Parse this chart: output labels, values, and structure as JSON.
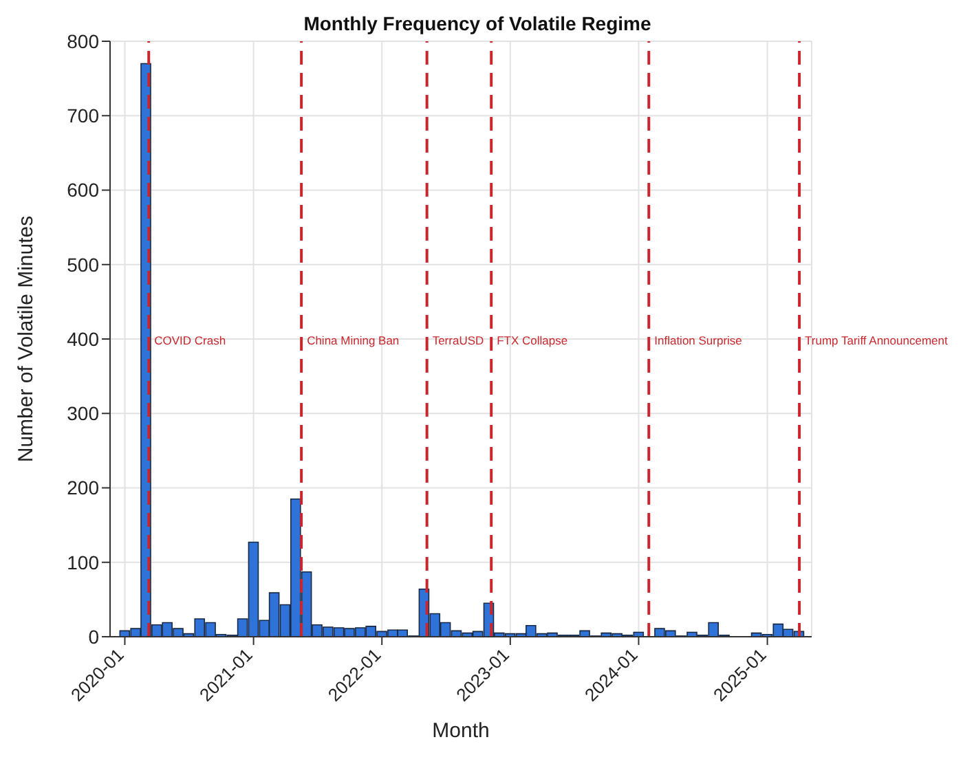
{
  "chart_data": {
    "type": "bar",
    "title": "Monthly Frequency of Volatile Regime",
    "xlabel": "Month",
    "ylabel": "Number of Volatile Minutes",
    "x": [
      "2020-01",
      "2020-02",
      "2020-03",
      "2020-04",
      "2020-05",
      "2020-06",
      "2020-07",
      "2020-08",
      "2020-09",
      "2020-10",
      "2020-11",
      "2020-12",
      "2021-01",
      "2021-02",
      "2021-03",
      "2021-04",
      "2021-05",
      "2021-06",
      "2021-07",
      "2021-08",
      "2021-09",
      "2021-10",
      "2021-11",
      "2021-12",
      "2022-01",
      "2022-02",
      "2022-03",
      "2022-04",
      "2022-05",
      "2022-06",
      "2022-07",
      "2022-08",
      "2022-09",
      "2022-10",
      "2022-11",
      "2022-12",
      "2023-01",
      "2023-02",
      "2023-03",
      "2023-04",
      "2023-05",
      "2023-06",
      "2023-07",
      "2023-08",
      "2023-09",
      "2023-10",
      "2023-11",
      "2023-12",
      "2024-01",
      "2024-02",
      "2024-03",
      "2024-04",
      "2024-05",
      "2024-06",
      "2024-07",
      "2024-08",
      "2024-09",
      "2024-10",
      "2024-11",
      "2024-12",
      "2025-01",
      "2025-02",
      "2025-03",
      "2025-04"
    ],
    "values": [
      8,
      11,
      770,
      16,
      19,
      11,
      4,
      24,
      19,
      3,
      2,
      24,
      127,
      22,
      59,
      43,
      185,
      87,
      16,
      13,
      12,
      11,
      12,
      14,
      7,
      9,
      9,
      1,
      64,
      31,
      19,
      8,
      5,
      7,
      45,
      5,
      4,
      4,
      15,
      4,
      5,
      2,
      2,
      8,
      1,
      5,
      4,
      2,
      6,
      0,
      11,
      8,
      1,
      6,
      2,
      19,
      2,
      0,
      0,
      5,
      3,
      17,
      10,
      7
    ],
    "color": "#2f72d8",
    "xlim": [
      "2019-11-20",
      "2025-05-07"
    ],
    "xticks": [
      "2020-01",
      "2021-01",
      "2022-01",
      "2023-01",
      "2024-01",
      "2025-01"
    ],
    "ylim": [
      0,
      800
    ],
    "yticks": [
      0,
      100,
      200,
      300,
      400,
      500,
      600,
      700,
      800
    ],
    "grid": true,
    "ref_lines": [
      {
        "axis": "x",
        "value": "2020-03-09",
        "label": "COVID Crash",
        "color": "#c8282d",
        "line_style": "dashed"
      },
      {
        "axis": "x",
        "value": "2021-05-17",
        "label": "China Mining Ban",
        "color": "#c8282d",
        "line_style": "dashed"
      },
      {
        "axis": "x",
        "value": "2022-05-09",
        "label": "TerraUSD",
        "color": "#c8282d",
        "line_style": "dashed"
      },
      {
        "axis": "x",
        "value": "2022-11-08",
        "label": "FTX Collapse",
        "color": "#c8282d",
        "line_style": "dashed"
      },
      {
        "axis": "x",
        "value": "2024-01-30",
        "label": "Inflation Surprise",
        "color": "#c8282d",
        "line_style": "dashed"
      },
      {
        "axis": "x",
        "value": "2025-04-02",
        "label": "Trump Tariff Announcement",
        "color": "#c8282d",
        "line_style": "dashed"
      }
    ]
  }
}
